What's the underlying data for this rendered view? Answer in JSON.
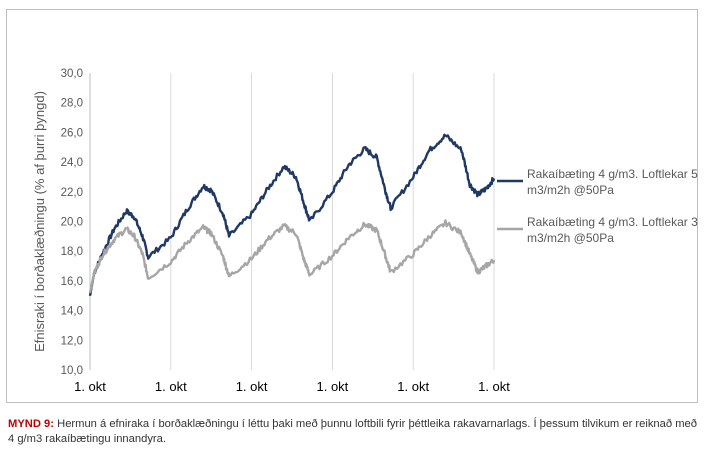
{
  "chart_data": {
    "type": "line",
    "title": "",
    "xlabel": "",
    "ylabel": "Efnisraki í borðaklæðningu (% af þurri þyngd)",
    "ylim": [
      10,
      30
    ],
    "ytick_step": 2,
    "ytick_labels": [
      "10,0",
      "12,0",
      "14,0",
      "16,0",
      "18,0",
      "20,0",
      "22,0",
      "24,0",
      "26,0",
      "28,0",
      "30,0"
    ],
    "xtick_labels": [
      "1. okt",
      "1. okt",
      "1. okt",
      "1. okt",
      "1. okt",
      "1. okt"
    ],
    "x_unit": "years",
    "xlim": [
      0,
      5
    ],
    "grid": "vertical",
    "legend": "right",
    "series": [
      {
        "name": "Rakaíbæting 4 g/m3. Loftlekar 5 m3/m2h @50Pa",
        "color": "#1f3864",
        "x": [
          0,
          0.05,
          0.15,
          0.3,
          0.45,
          0.55,
          0.65,
          0.72,
          1.0,
          1.2,
          1.4,
          1.5,
          1.65,
          1.72,
          2.0,
          2.2,
          2.4,
          2.55,
          2.65,
          2.72,
          3.0,
          3.2,
          3.4,
          3.55,
          3.65,
          3.72,
          4.0,
          4.2,
          4.4,
          4.6,
          4.7,
          4.8,
          4.9,
          5.0
        ],
        "y": [
          15.0,
          16.5,
          17.8,
          19.5,
          20.7,
          20.3,
          19.0,
          17.6,
          18.9,
          20.8,
          22.4,
          22.1,
          20.5,
          19.0,
          20.5,
          22.2,
          23.7,
          23.0,
          21.2,
          20.0,
          22.0,
          23.8,
          24.9,
          24.3,
          22.2,
          20.9,
          23.0,
          24.8,
          25.8,
          24.8,
          22.5,
          21.8,
          22.2,
          22.9
        ]
      },
      {
        "name": "Rakaíbæting 4 g/m3. Loftlekar 3 m3/m2h @50Pa",
        "color": "#a6a6a6",
        "x": [
          0,
          0.05,
          0.15,
          0.3,
          0.45,
          0.55,
          0.65,
          0.72,
          1.0,
          1.2,
          1.4,
          1.5,
          1.65,
          1.72,
          2.0,
          2.2,
          2.4,
          2.55,
          2.65,
          2.72,
          3.0,
          3.2,
          3.4,
          3.55,
          3.65,
          3.72,
          4.0,
          4.2,
          4.4,
          4.6,
          4.7,
          4.8,
          4.9,
          5.0
        ],
        "y": [
          15.2,
          16.5,
          17.7,
          18.8,
          19.5,
          19.0,
          17.8,
          16.2,
          17.3,
          18.6,
          19.6,
          19.2,
          17.6,
          16.3,
          17.5,
          18.8,
          19.7,
          19.2,
          17.4,
          16.4,
          17.7,
          18.9,
          19.8,
          19.4,
          17.8,
          16.6,
          17.8,
          19.0,
          19.9,
          19.2,
          17.8,
          16.6,
          17.0,
          17.4
        ]
      }
    ]
  },
  "caption": {
    "label": "MYND 9:",
    "text": "Hermun á efniraka í borðaklæðningu í léttu þaki með þunnu loftbili fyrir þéttleika rakavarnarlags. Í þessum tilvikum er reiknað með 4 g/m3 rakaíbætingu innandyra."
  }
}
